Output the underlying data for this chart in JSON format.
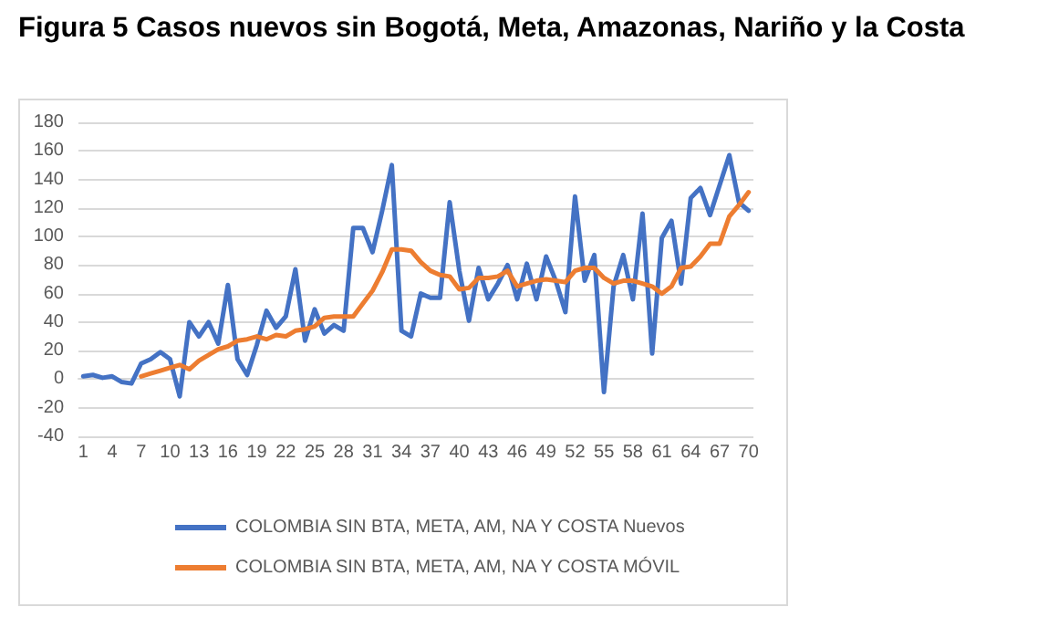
{
  "chart_data": {
    "type": "line",
    "title": "Figura 5 Casos nuevos sin Bogotá, Meta, Amazonas, Nariño y la Costa",
    "categories": [
      "1",
      null,
      null,
      "4",
      null,
      null,
      "7",
      null,
      null,
      "10",
      null,
      null,
      "13",
      null,
      null,
      "16",
      null,
      null,
      "19",
      null,
      null,
      "22",
      null,
      null,
      "25",
      null,
      null,
      "28",
      null,
      null,
      "31",
      null,
      null,
      "34",
      null,
      null,
      "37",
      null,
      null,
      "40",
      null,
      null,
      "43",
      null,
      null,
      "46",
      null,
      null,
      "49",
      null,
      null,
      "52",
      null,
      null,
      "55",
      null,
      null,
      "58",
      null,
      null,
      "61",
      null,
      null,
      "64",
      null,
      null,
      "67",
      null,
      null,
      "70"
    ],
    "series": [
      {
        "name": "COLOMBIA SIN BTA, META, AM, NA Y COSTA Nuevos",
        "color": "#4472c4",
        "values": [
          2,
          3,
          1,
          2,
          -2,
          -3,
          11,
          14,
          19,
          14,
          -12,
          40,
          30,
          40,
          25,
          66,
          14,
          3,
          24,
          48,
          36,
          44,
          77,
          27,
          49,
          32,
          38,
          34,
          106,
          106,
          89,
          118,
          150,
          34,
          30,
          60,
          57,
          57,
          124,
          76,
          41,
          78,
          56,
          67,
          80,
          56,
          81,
          56,
          86,
          69,
          47,
          128,
          69,
          87,
          -9,
          65,
          87,
          56,
          116,
          18,
          99,
          111,
          67,
          127,
          134,
          115,
          136,
          157,
          124,
          118
        ]
      },
      {
        "name": "COLOMBIA SIN BTA, META, AM, NA Y COSTA MÓVIL",
        "color": "#ed7d31",
        "values": [
          null,
          null,
          null,
          null,
          null,
          null,
          2,
          4,
          6,
          8,
          10,
          7,
          13,
          17,
          21,
          23,
          27,
          28,
          30,
          28,
          31,
          30,
          34,
          35,
          37,
          43,
          44,
          44,
          44,
          53,
          62,
          75,
          91,
          91,
          90,
          82,
          76,
          73,
          72,
          63,
          64,
          71,
          71,
          72,
          76,
          65,
          67,
          69,
          70,
          69,
          68,
          76,
          78,
          78,
          71,
          67,
          69,
          69,
          67,
          65,
          60,
          65,
          78,
          79,
          86,
          95,
          95,
          114,
          122,
          131
        ]
      }
    ],
    "ylim": [
      -40,
      180
    ],
    "yticks": [
      -40,
      -20,
      0,
      20,
      40,
      60,
      80,
      100,
      120,
      140,
      160,
      180
    ],
    "grid": "y",
    "legend": "bottom",
    "marker": "none",
    "line_style": "solid"
  }
}
